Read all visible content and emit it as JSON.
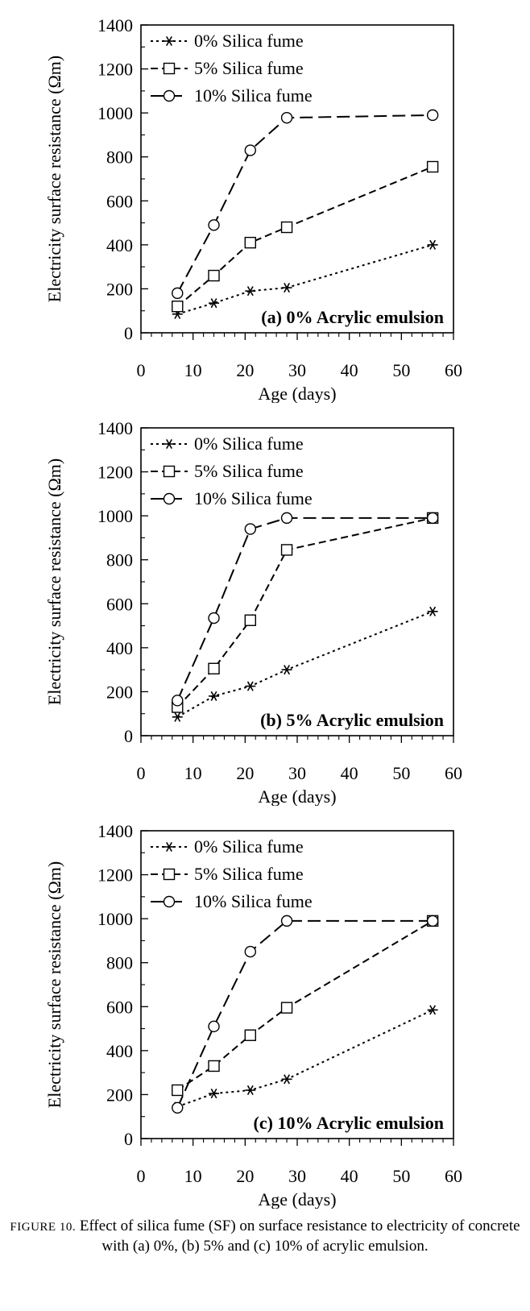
{
  "chart_data": [
    {
      "type": "line",
      "title": "(a) 0% Acrylic emulsion",
      "xlabel": "Age (days)",
      "ylabel": "Electricity surface resistance (Ωm)",
      "xlim": [
        0,
        60
      ],
      "ylim": [
        0,
        1400
      ],
      "xticks": [
        0,
        10,
        20,
        30,
        40,
        50,
        60
      ],
      "yticks": [
        0,
        200,
        400,
        600,
        800,
        1000,
        1200,
        1400
      ],
      "legend_position": "top-left",
      "grid": false,
      "series": [
        {
          "name": "0% Silica fume",
          "marker": "asterisk",
          "dash": "dotted",
          "x": [
            7,
            14,
            21,
            28,
            56
          ],
          "y": [
            85,
            135,
            190,
            205,
            400
          ]
        },
        {
          "name": "5% Silica fume",
          "marker": "square",
          "dash": "dashed",
          "x": [
            7,
            14,
            21,
            28,
            56
          ],
          "y": [
            120,
            260,
            410,
            480,
            755
          ]
        },
        {
          "name": "10% Silica fume",
          "marker": "circle",
          "dash": "longdash",
          "x": [
            7,
            14,
            21,
            28,
            56
          ],
          "y": [
            180,
            490,
            830,
            978,
            990
          ]
        }
      ]
    },
    {
      "type": "line",
      "title": "(b) 5% Acrylic emulsion",
      "xlabel": "Age (days)",
      "ylabel": "Electricity surface resistance (Ωm)",
      "xlim": [
        0,
        60
      ],
      "ylim": [
        0,
        1400
      ],
      "xticks": [
        0,
        10,
        20,
        30,
        40,
        50,
        60
      ],
      "yticks": [
        0,
        200,
        400,
        600,
        800,
        1000,
        1200,
        1400
      ],
      "legend_position": "top-left",
      "grid": false,
      "series": [
        {
          "name": "0% Silica fume",
          "marker": "asterisk",
          "dash": "dotted",
          "x": [
            7,
            14,
            21,
            28,
            56
          ],
          "y": [
            85,
            180,
            225,
            300,
            565
          ]
        },
        {
          "name": "5% Silica fume",
          "marker": "square",
          "dash": "dashed",
          "x": [
            7,
            14,
            21,
            28,
            56
          ],
          "y": [
            130,
            305,
            525,
            845,
            990
          ]
        },
        {
          "name": "10% Silica fume",
          "marker": "circle",
          "dash": "longdash",
          "x": [
            7,
            14,
            21,
            28,
            56
          ],
          "y": [
            160,
            535,
            940,
            990,
            990
          ]
        }
      ]
    },
    {
      "type": "line",
      "title": "(c) 10% Acrylic emulsion",
      "xlabel": "Age (days)",
      "ylabel": "Electricity surface resistance (Ωm)",
      "xlim": [
        0,
        60
      ],
      "ylim": [
        0,
        1400
      ],
      "xticks": [
        0,
        10,
        20,
        30,
        40,
        50,
        60
      ],
      "yticks": [
        0,
        200,
        400,
        600,
        800,
        1000,
        1200,
        1400
      ],
      "legend_position": "top-left",
      "grid": false,
      "series": [
        {
          "name": "0% Silica fume",
          "marker": "asterisk",
          "dash": "dotted",
          "x": [
            7,
            14,
            21,
            28,
            56
          ],
          "y": [
            145,
            205,
            220,
            270,
            585
          ]
        },
        {
          "name": "5% Silica fume",
          "marker": "square",
          "dash": "dashed",
          "x": [
            7,
            14,
            21,
            28,
            56
          ],
          "y": [
            220,
            330,
            470,
            595,
            990
          ]
        },
        {
          "name": "10% Silica fume",
          "marker": "circle",
          "dash": "longdash",
          "x": [
            7,
            14,
            21,
            28,
            56
          ],
          "y": [
            140,
            510,
            850,
            990,
            990
          ]
        }
      ]
    }
  ],
  "caption": {
    "figure_label": "FIGURE 10.",
    "text": "Effect of silica fume (SF) on surface resistance to electricity of concrete with (a) 0%, (b) 5% and (c) 10% of acrylic emulsion."
  }
}
